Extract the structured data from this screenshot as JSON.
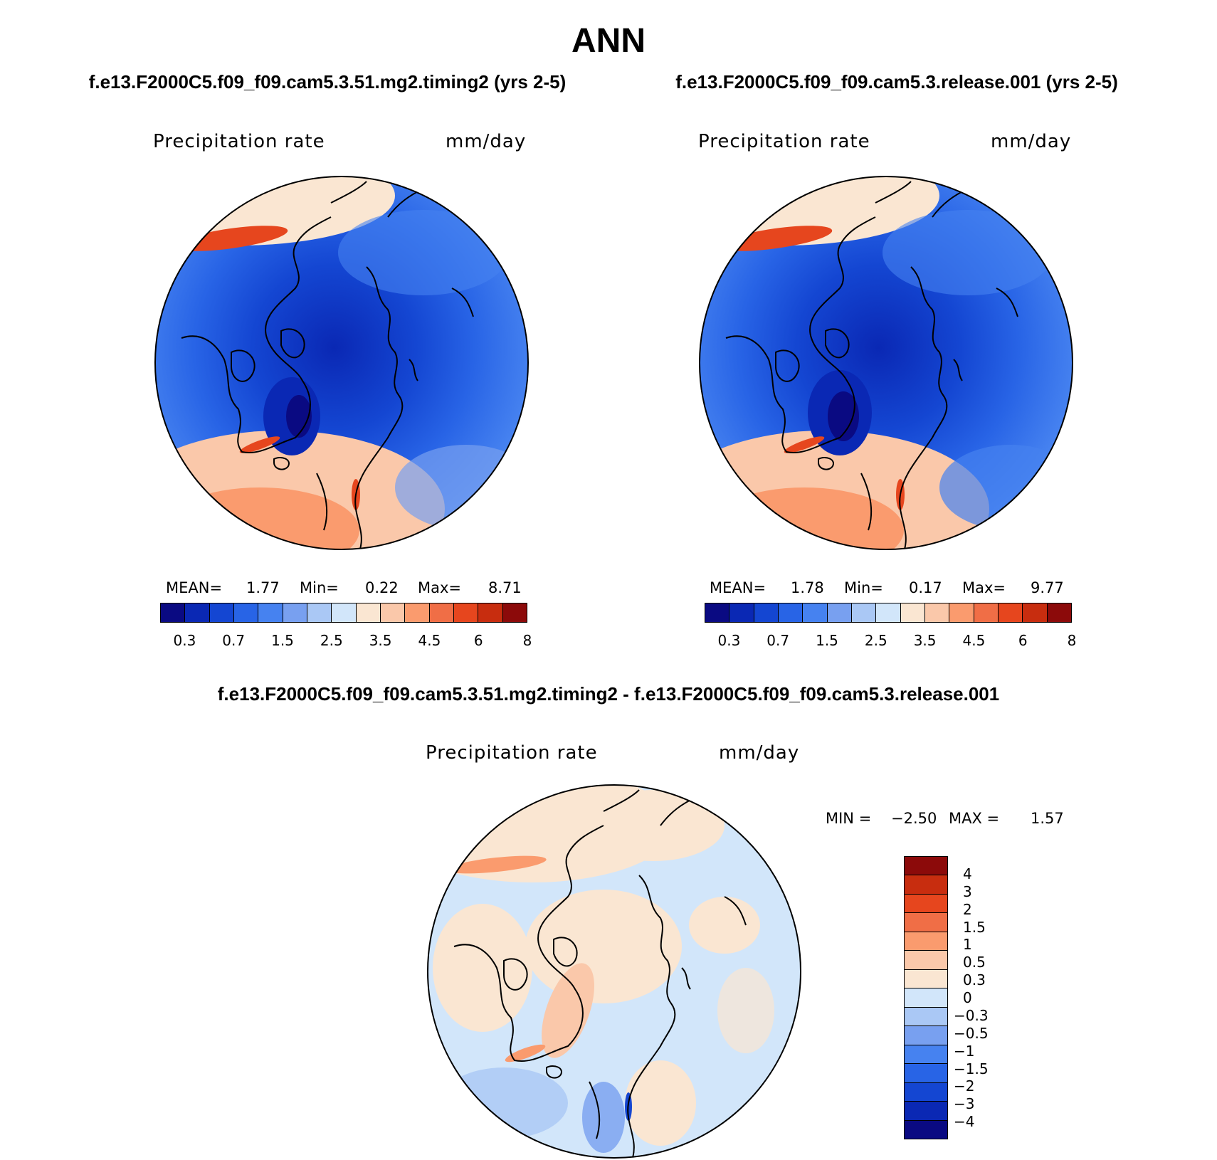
{
  "title": "ANN",
  "colors": {
    "abs_scale": [
      "#0a0a82",
      "#0a28b4",
      "#1446d2",
      "#2864e6",
      "#4682f0",
      "#78a0f0",
      "#aac8f5",
      "#d2e6fa",
      "#fae6d2",
      "#fac8aa",
      "#fa9b6e",
      "#f06e46",
      "#e6461e",
      "#c82d0f",
      "#8c0a0a"
    ],
    "diff_scale": [
      "#8c0a0a",
      "#c82d0f",
      "#e6461e",
      "#f06e46",
      "#fa9b6e",
      "#fac8aa",
      "#fae6d2",
      "#d2e6fa",
      "#aac8f5",
      "#78a0f0",
      "#4682f0",
      "#2864e6",
      "#1446d2",
      "#0a28b4",
      "#0a0a82"
    ]
  },
  "panels": {
    "left": {
      "run": "f.e13.F2000C5.f09_f09.cam5.3.51.mg2.timing2 (yrs 2-5)",
      "variable": "Precipitation rate",
      "units": "mm/day",
      "mean_label": "MEAN=",
      "mean": "1.77",
      "min_label": "Min=",
      "min": "0.22",
      "max_label": "Max=",
      "max": "8.71"
    },
    "right": {
      "run": "f.e13.F2000C5.f09_f09.cam5.3.release.001 (yrs 2-5)",
      "variable": "Precipitation rate",
      "units": "mm/day",
      "mean_label": "MEAN=",
      "mean": "1.78",
      "min_label": "Min=",
      "min": "0.17",
      "max_label": "Max=",
      "max": "9.77"
    },
    "diff": {
      "run": "f.e13.F2000C5.f09_f09.cam5.3.51.mg2.timing2 - f.e13.F2000C5.f09_f09.cam5.3.release.001",
      "variable": "Precipitation rate",
      "units": "mm/day",
      "min_label": "MIN =",
      "min": "−2.50",
      "max_label": "MAX =",
      "max": "1.57"
    }
  },
  "abs_ticks": [
    "0.3",
    "0.7",
    "1.5",
    "2.5",
    "3.5",
    "4.5",
    "6",
    "8"
  ],
  "diff_ticks": [
    "4",
    "3",
    "2",
    "1.5",
    "1",
    "0.5",
    "0.3",
    "0",
    "−0.3",
    "−0.5",
    "−1",
    "−1.5",
    "−2",
    "−3",
    "−4"
  ]
}
